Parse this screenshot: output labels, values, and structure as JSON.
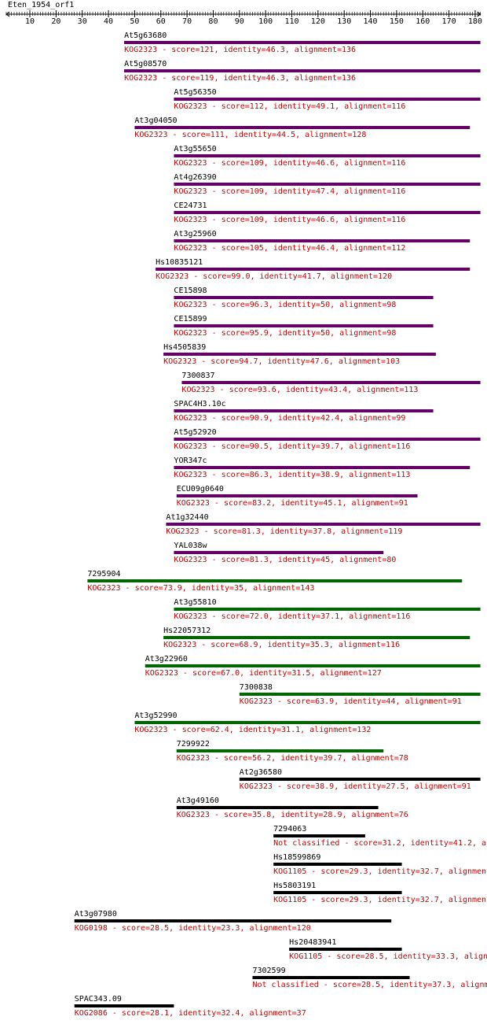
{
  "chart_data": {
    "type": "alignment",
    "title": "Eten_1954_orf1",
    "xlim": [
      1,
      182
    ],
    "xticks": [
      10,
      20,
      30,
      40,
      50,
      60,
      70,
      80,
      90,
      100,
      110,
      120,
      130,
      140,
      150,
      160,
      170,
      180
    ],
    "label_color": "#cc0000",
    "hits": [
      {
        "name": "At5g63680",
        "description": "KOG2323 - score=121, identity=46.3, alignment=136",
        "start": 46,
        "end": 182,
        "color": "#660066"
      },
      {
        "name": "At5g08570",
        "description": "KOG2323 - score=119, identity=46.3, alignment=136",
        "start": 46,
        "end": 182,
        "color": "#660066"
      },
      {
        "name": "At5g56350",
        "description": "KOG2323 - score=112, identity=49.1, alignment=116",
        "start": 65,
        "end": 182,
        "color": "#660066"
      },
      {
        "name": "At3g04050",
        "description": "KOG2323 - score=111, identity=44.5, alignment=128",
        "start": 50,
        "end": 178,
        "color": "#660066"
      },
      {
        "name": "At3g55650",
        "description": "KOG2323 - score=109, identity=46.6, alignment=116",
        "start": 65,
        "end": 182,
        "color": "#660066"
      },
      {
        "name": "At4g26390",
        "description": "KOG2323 - score=109, identity=47.4, alignment=116",
        "start": 65,
        "end": 182,
        "color": "#660066"
      },
      {
        "name": "CE24731",
        "description": "KOG2323 - score=109, identity=46.6, alignment=116",
        "start": 65,
        "end": 182,
        "color": "#660066"
      },
      {
        "name": "At3g25960",
        "description": "KOG2323 - score=105, identity=46.4, alignment=112",
        "start": 65,
        "end": 178,
        "color": "#660066"
      },
      {
        "name": "Hs10835121",
        "description": "KOG2323 - score=99.0, identity=41.7, alignment=120",
        "start": 58,
        "end": 178,
        "color": "#660066"
      },
      {
        "name": "CE15898",
        "description": "KOG2323 - score=96.3, identity=50, alignment=98",
        "start": 65,
        "end": 164,
        "color": "#660066"
      },
      {
        "name": "CE15899",
        "description": "KOG2323 - score=95.9, identity=50, alignment=98",
        "start": 65,
        "end": 164,
        "color": "#660066"
      },
      {
        "name": "Hs4505839",
        "description": "KOG2323 - score=94.7, identity=47.6, alignment=103",
        "start": 61,
        "end": 165,
        "color": "#660066"
      },
      {
        "name": "7300837",
        "description": "KOG2323 - score=93.6, identity=43.4, alignment=113",
        "start": 68,
        "end": 182,
        "color": "#660066"
      },
      {
        "name": "SPAC4H3.10c",
        "description": "KOG2323 - score=90.9, identity=42.4, alignment=99",
        "start": 65,
        "end": 164,
        "color": "#660066"
      },
      {
        "name": "At5g52920",
        "description": "KOG2323 - score=90.5, identity=39.7, alignment=116",
        "start": 65,
        "end": 182,
        "color": "#660066"
      },
      {
        "name": "YOR347c",
        "description": "KOG2323 - score=86.3, identity=38.9, alignment=113",
        "start": 65,
        "end": 178,
        "color": "#660066"
      },
      {
        "name": "ECU09g0640",
        "description": "KOG2323 - score=83.2, identity=45.1, alignment=91",
        "start": 66,
        "end": 158,
        "color": "#660066"
      },
      {
        "name": "At1g32440",
        "description": "KOG2323 - score=81.3, identity=37.8, alignment=119",
        "start": 62,
        "end": 182,
        "color": "#660066"
      },
      {
        "name": "YAL038w",
        "description": "KOG2323 - score=81.3, identity=45, alignment=80",
        "start": 65,
        "end": 145,
        "color": "#660066"
      },
      {
        "name": "7295904",
        "description": "KOG2323 - score=73.9, identity=35, alignment=143",
        "start": 32,
        "end": 175,
        "color": "#006600"
      },
      {
        "name": "At3g55810",
        "description": "KOG2323 - score=72.0, identity=37.1, alignment=116",
        "start": 65,
        "end": 182,
        "color": "#006600"
      },
      {
        "name": "Hs22057312",
        "description": "KOG2323 - score=68.9, identity=35.3, alignment=116",
        "start": 61,
        "end": 178,
        "color": "#006600"
      },
      {
        "name": "At3g22960",
        "description": "KOG2323 - score=67.0, identity=31.5, alignment=127",
        "start": 54,
        "end": 182,
        "color": "#006600"
      },
      {
        "name": "7300838",
        "description": "KOG2323 - score=63.9, identity=44, alignment=91",
        "start": 90,
        "end": 182,
        "color": "#006600"
      },
      {
        "name": "At3g52990",
        "description": "KOG2323 - score=62.4, identity=31.1, alignment=132",
        "start": 50,
        "end": 182,
        "color": "#006600"
      },
      {
        "name": "7299922",
        "description": "KOG2323 - score=56.2, identity=39.7, alignment=78",
        "start": 66,
        "end": 145,
        "color": "#006600"
      },
      {
        "name": "At2g36580",
        "description": "KOG2323 - score=38.9, identity=27.5, alignment=91",
        "start": 90,
        "end": 182,
        "color": "#000000"
      },
      {
        "name": "At3g49160",
        "description": "KOG2323 - score=35.8, identity=28.9, alignment=76",
        "start": 66,
        "end": 143,
        "color": "#000000"
      },
      {
        "name": "7294063",
        "description": "Not classified - score=31.2, identity=41.2, a",
        "start": 103,
        "end": 138,
        "color": "#000000"
      },
      {
        "name": "Hs18599869",
        "description": "KOG1105 - score=29.3, identity=32.7, alignment",
        "start": 103,
        "end": 152,
        "color": "#000000"
      },
      {
        "name": "Hs5803191",
        "description": "KOG1105 - score=29.3, identity=32.7, alignment",
        "start": 103,
        "end": 152,
        "color": "#000000"
      },
      {
        "name": "At3g07980",
        "description": "KOG0198 - score=28.5, identity=23.3, alignment=120",
        "start": 27,
        "end": 148,
        "color": "#000000"
      },
      {
        "name": "Hs20483941",
        "description": "KOG1105 - score=28.5, identity=33.3, align",
        "start": 109,
        "end": 152,
        "color": "#000000"
      },
      {
        "name": "7302599",
        "description": "Not classified - score=28.5, identity=37.3, alignm",
        "start": 95,
        "end": 155,
        "color": "#000000"
      },
      {
        "name": "SPAC343.09",
        "description": "KOG2086 - score=28.1, identity=32.4, alignment=37",
        "start": 27,
        "end": 65,
        "color": "#000000"
      }
    ]
  }
}
